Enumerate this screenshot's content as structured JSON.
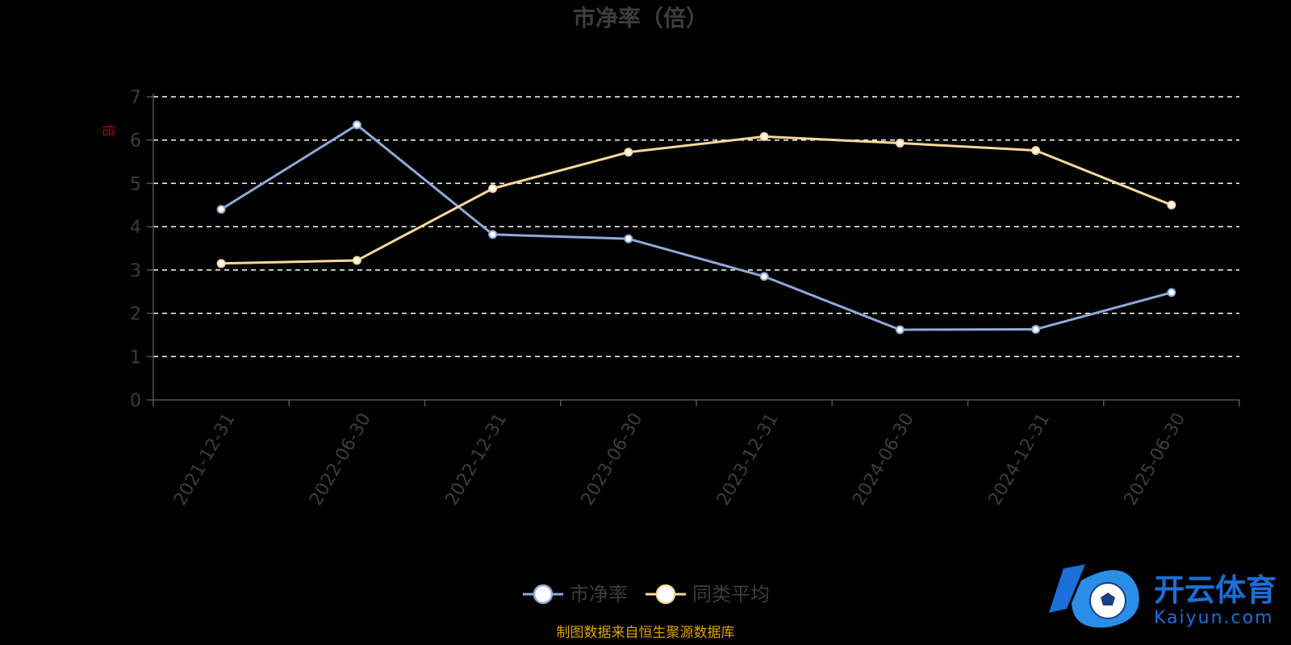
{
  "chart_data": {
    "type": "line",
    "title": "市净率（倍）",
    "ylabel": "倍",
    "ylim": [
      0,
      7
    ],
    "yticks": [
      0,
      1,
      2,
      3,
      4,
      5,
      6,
      7
    ],
    "grid": true,
    "legend_position": "bottom-center",
    "categories": [
      "2021-12-31",
      "2022-06-30",
      "2022-12-31",
      "2023-06-30",
      "2023-12-31",
      "2024-06-30",
      "2024-12-31",
      "2025-06-30"
    ],
    "series": [
      {
        "name": "市净率",
        "color": "#8eaad8",
        "values": [
          4.4,
          6.35,
          3.82,
          3.72,
          2.85,
          1.62,
          1.63,
          2.48
        ]
      },
      {
        "name": "同类平均",
        "color": "#fcd89a",
        "values": [
          3.15,
          3.22,
          4.88,
          5.72,
          6.08,
          5.93,
          5.76,
          4.5
        ]
      }
    ]
  },
  "source_note": "制图数据来自恒生聚源数据库",
  "logo": {
    "text_cn": "开云体育",
    "text_en": "Kaiyun.com"
  },
  "colors": {
    "background": "#000000",
    "grid": "#ffffff",
    "axis": "#555555",
    "text": "#3d3d3d",
    "unit": "#c00000",
    "source": "#e0a000",
    "logo": "#1a6fd8"
  }
}
